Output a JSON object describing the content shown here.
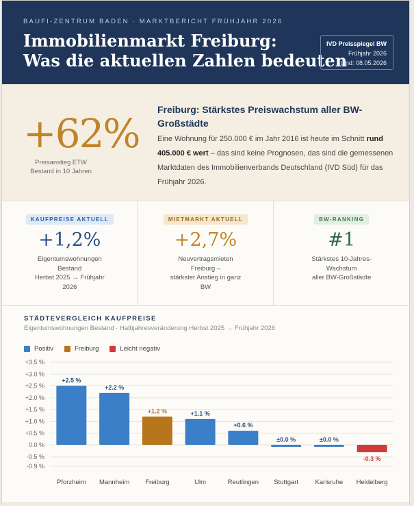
{
  "header": {
    "kicker": "BAUFI-ZENTRUM BADEN · MARKTBERICHT FRÜHJAHR 2026",
    "title_line1": "Immobilienmarkt Freiburg:",
    "title_line2": "Was die aktuellen Zahlen bedeuten",
    "badge_title": "IVD Preisspiegel BW",
    "badge_period": "Frühjahr 2026",
    "badge_date": "Stand: 08.05.2026"
  },
  "intro": {
    "big_value": "+62%",
    "big_caption_1": "Preisanstieg ETW",
    "big_caption_2": "Bestand in 10 Jahren",
    "headline": "Freiburg: Stärkstes Preiswachstum aller BW-Großstädte",
    "body_1": "Eine Wohnung für 250.000 € im Jahr 2016 ist heute im Schnitt ",
    "body_bold": "rund 405.000 € wert",
    "body_2": " – das sind keine Prognosen, das sind die gemessenen Marktdaten des Immobilienverbands Deutschland (IVD Süd) für das Frühjahr 2026."
  },
  "cards": [
    {
      "tag": "KAUFPREISE AKTUELL",
      "value": "+1,2%",
      "desc_1": "Eigentumswohnungen",
      "desc_2": "Bestand",
      "desc_3": "Herbst 2025 → Frühjahr",
      "desc_4": "2026"
    },
    {
      "tag": "MIETMARKT AKTUELL",
      "value": "+2,7%",
      "desc_1": "Neuvertragsmieten",
      "desc_2": "Freiburg –",
      "desc_3": "stärkster Anstieg in ganz",
      "desc_4": "BW"
    },
    {
      "tag": "BW-RANKING",
      "value": "#1",
      "desc_1": "Stärkstes 10-Jahres-",
      "desc_2": "Wachstum",
      "desc_3": "aller BW-Großstädte",
      "desc_4": ""
    }
  ],
  "chart_section": {
    "title": "STÄDTEVERGLEICH KAUFPREISE",
    "subtitle": "Eigentumswohnungen Bestand · Halbjahresveränderung Herbst 2025 → Frühjahr 2026"
  },
  "colors": {
    "positive": "#3a7fc7",
    "freiburg": "#b8761c",
    "negative": "#cf3a3a",
    "navy": "#1f3559"
  },
  "chart_data": {
    "type": "bar",
    "categories": [
      "Pforzheim",
      "Mannheim",
      "Freiburg",
      "Ulm",
      "Reutlingen",
      "Stuttgart",
      "Karlsruhe",
      "Heidelberg"
    ],
    "values": [
      2.5,
      2.2,
      1.2,
      1.1,
      0.6,
      0.0,
      0.0,
      -0.3
    ],
    "data_labels": [
      "+2.5 %",
      "+2.2 %",
      "+1.2 %",
      "+1.1 %",
      "+0.6 %",
      "±0.0 %",
      "±0.0 %",
      "-0.3 %"
    ],
    "groups": [
      "positive",
      "positive",
      "freiburg",
      "positive",
      "positive",
      "positive",
      "positive",
      "negative"
    ],
    "legend": [
      {
        "key": "positive",
        "label": "Positiv"
      },
      {
        "key": "freiburg",
        "label": "Freiburg"
      },
      {
        "key": "negative",
        "label": "Leicht negativ"
      }
    ],
    "ylim": [
      -0.9,
      3.5
    ],
    "yticks": [
      3.5,
      3.0,
      2.5,
      2.0,
      1.5,
      1.0,
      0.5,
      0.0,
      -0.5,
      -0.9
    ],
    "ytick_labels": [
      "+3.5 %",
      "+3.0 %",
      "+2.5 %",
      "+2.0 %",
      "+1.5 %",
      "+1.0 %",
      "+0.5 %",
      "0.0 %",
      "-0.5 %",
      "-0.9 %"
    ],
    "grid": true,
    "legend_position": "top-left"
  }
}
